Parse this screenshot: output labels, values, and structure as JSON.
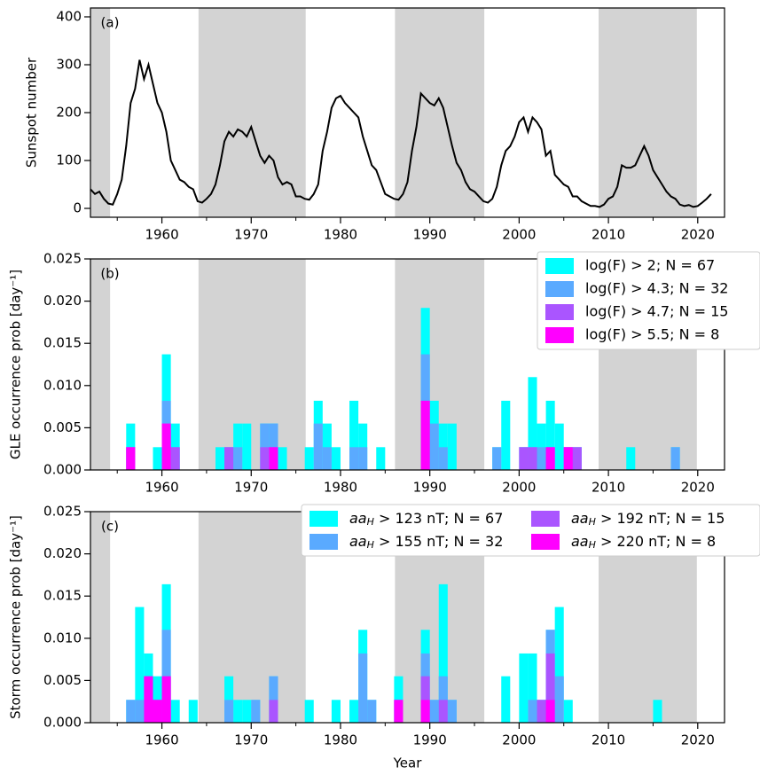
{
  "chart_data": [
    {
      "type": "line",
      "panel_label": "(a)",
      "ylabel": "Sunspot number",
      "color": "#000000",
      "xlim": [
        1952,
        2023
      ],
      "xticks": [
        1960,
        1970,
        1980,
        1990,
        2000,
        2010,
        2020
      ],
      "xminorticks": [
        1955,
        1965,
        1975,
        1985,
        1995,
        2005,
        2015
      ],
      "ylim": [
        -18.5,
        418.5
      ],
      "yticks": [
        0,
        100,
        200,
        300,
        400
      ],
      "shaded_spans": [
        [
          1952,
          1954.2
        ],
        [
          1964.1,
          1976.1
        ],
        [
          1986.1,
          1996.1
        ],
        [
          2008.9,
          2019.9
        ]
      ],
      "shade_color": "#d3d3d3",
      "x": [
        1952,
        1952.5,
        1953,
        1953.5,
        1954,
        1954.5,
        1955,
        1955.5,
        1956,
        1956.5,
        1957,
        1957.5,
        1958,
        1958.5,
        1959,
        1959.5,
        1960,
        1960.5,
        1961,
        1961.5,
        1962,
        1962.5,
        1963,
        1963.5,
        1964,
        1964.5,
        1965,
        1965.5,
        1966,
        1966.5,
        1967,
        1967.5,
        1968,
        1968.5,
        1969,
        1969.5,
        1970,
        1970.5,
        1971,
        1971.5,
        1972,
        1972.5,
        1973,
        1973.5,
        1974,
        1974.5,
        1975,
        1975.5,
        1976,
        1976.5,
        1977,
        1977.5,
        1978,
        1978.5,
        1979,
        1979.5,
        1980,
        1980.5,
        1981,
        1981.5,
        1982,
        1982.5,
        1983,
        1983.5,
        1984,
        1984.5,
        1985,
        1985.5,
        1986,
        1986.5,
        1987,
        1987.5,
        1988,
        1988.5,
        1989,
        1989.5,
        1990,
        1990.5,
        1991,
        1991.5,
        1992,
        1992.5,
        1993,
        1993.5,
        1994,
        1994.5,
        1995,
        1995.5,
        1996,
        1996.5,
        1997,
        1997.5,
        1998,
        1998.5,
        1999,
        1999.5,
        2000,
        2000.5,
        2001,
        2001.5,
        2002,
        2002.5,
        2003,
        2003.5,
        2004,
        2004.5,
        2005,
        2005.5,
        2006,
        2006.5,
        2007,
        2007.5,
        2008,
        2008.5,
        2009,
        2009.5,
        2010,
        2010.5,
        2011,
        2011.5,
        2012,
        2012.5,
        2013,
        2013.5,
        2014,
        2014.5,
        2015,
        2015.5,
        2016,
        2016.5,
        2017,
        2017.5,
        2018,
        2018.5,
        2019,
        2019.5,
        2020,
        2020.5,
        2021,
        2021.5
      ],
      "values": [
        40,
        30,
        35,
        20,
        10,
        8,
        30,
        60,
        130,
        220,
        250,
        310,
        270,
        300,
        260,
        220,
        200,
        160,
        100,
        80,
        60,
        55,
        45,
        40,
        15,
        12,
        20,
        30,
        50,
        90,
        140,
        160,
        150,
        165,
        160,
        150,
        170,
        140,
        110,
        95,
        110,
        100,
        65,
        50,
        55,
        50,
        25,
        25,
        20,
        18,
        30,
        50,
        120,
        160,
        210,
        230,
        235,
        220,
        210,
        200,
        190,
        150,
        120,
        90,
        80,
        55,
        30,
        25,
        20,
        18,
        30,
        55,
        120,
        170,
        240,
        230,
        220,
        215,
        230,
        210,
        170,
        130,
        95,
        80,
        55,
        40,
        35,
        25,
        15,
        12,
        20,
        45,
        90,
        120,
        130,
        150,
        180,
        190,
        160,
        190,
        180,
        165,
        110,
        120,
        70,
        60,
        50,
        45,
        25,
        25,
        15,
        10,
        5,
        5,
        3,
        8,
        20,
        25,
        45,
        90,
        85,
        85,
        90,
        110,
        130,
        110,
        80,
        65,
        50,
        35,
        25,
        20,
        8,
        5,
        7,
        3,
        5,
        12,
        20,
        30
      ]
    },
    {
      "type": "bar",
      "panel_label": "(b)",
      "ylabel": "GLE occurrence prob [day⁻¹]",
      "bar_width": 1,
      "xlim": [
        1952,
        2023
      ],
      "xticks": [
        1960,
        1970,
        1980,
        1990,
        2000,
        2010,
        2020
      ],
      "xminorticks": [
        1955,
        1965,
        1975,
        1985,
        1995,
        2005,
        2015
      ],
      "ylim": [
        0,
        0.025
      ],
      "yticks": [
        {
          "value": 0,
          "label": "0.000"
        },
        {
          "value": 0.005,
          "label": "0.005"
        },
        {
          "value": 0.01,
          "label": "0.010"
        },
        {
          "value": 0.015,
          "label": "0.015"
        },
        {
          "value": 0.02,
          "label": "0.020"
        },
        {
          "value": 0.025,
          "label": "0.025"
        }
      ],
      "shaded_spans": [
        [
          1952,
          1954.2
        ],
        [
          1964.1,
          1976.1
        ],
        [
          1986.1,
          1996.1
        ],
        [
          2008.9,
          2019.9
        ]
      ],
      "shade_color": "#d3d3d3",
      "legend": "upper right",
      "legend_columns": 1,
      "legend_math": false,
      "series": [
        {
          "name": "log(F) > 2; N = 67",
          "color": "#00ffff",
          "x": [
            1956,
            1959,
            1960,
            1961,
            1966,
            1967,
            1968,
            1969,
            1971,
            1972,
            1973,
            1976,
            1977,
            1978,
            1979,
            1981,
            1982,
            1984,
            1989,
            1990,
            1991,
            1992,
            1997,
            1998,
            2000,
            2001,
            2002,
            2003,
            2004,
            2005,
            2006,
            2012,
            2017
          ],
          "values": [
            0.0055,
            0.0027,
            0.0137,
            0.0055,
            0.0027,
            0.0027,
            0.0055,
            0.0055,
            0.0055,
            0.0055,
            0.0027,
            0.0027,
            0.0082,
            0.0055,
            0.0027,
            0.0082,
            0.0055,
            0.0027,
            0.0192,
            0.0082,
            0.0055,
            0.0055,
            0.0027,
            0.0082,
            0.0027,
            0.011,
            0.0055,
            0.0082,
            0.0055,
            0.0027,
            0.0027,
            0.0027,
            0.0027
          ]
        },
        {
          "name": "log(F) > 4.3; N = 32",
          "color": "#5aaaff",
          "x": [
            1956,
            1960,
            1961,
            1967,
            1968,
            1971,
            1972,
            1977,
            1978,
            1981,
            1982,
            1989,
            1990,
            1991,
            1997,
            2000,
            2001,
            2002,
            2003,
            2005,
            2006,
            2017
          ],
          "values": [
            0.0027,
            0.0082,
            0.0027,
            0.0027,
            0.0027,
            0.0055,
            0.0055,
            0.0055,
            0.0027,
            0.0027,
            0.0027,
            0.0137,
            0.0055,
            0.0027,
            0.0027,
            0.0027,
            0.0027,
            0.0027,
            0.0027,
            0.0027,
            0.0027,
            0.0027
          ]
        },
        {
          "name": "log(F) > 4.7; N = 15",
          "color": "#aa55ff",
          "x": [
            1956,
            1960,
            1961,
            1967,
            1971,
            1972,
            1989,
            2000,
            2001,
            2003,
            2005,
            2006
          ],
          "values": [
            0.0027,
            0.0055,
            0.0027,
            0.0027,
            0.0027,
            0.0027,
            0.0082,
            0.0027,
            0.0027,
            0.0027,
            0.0027,
            0.0027
          ]
        },
        {
          "name": "log(F) > 5.5; N = 8",
          "color": "#ff00ff",
          "x": [
            1956,
            1960,
            1972,
            1989,
            2003,
            2005
          ],
          "values": [
            0.0027,
            0.0055,
            0.0027,
            0.0082,
            0.0027,
            0.0027
          ]
        }
      ]
    },
    {
      "type": "bar",
      "panel_label": "(c)",
      "ylabel": "Storm occurrence prob [day⁻¹]",
      "xlabel": "Year",
      "bar_width": 1,
      "xlim": [
        1952,
        2023
      ],
      "xticks": [
        1960,
        1970,
        1980,
        1990,
        2000,
        2010,
        2020
      ],
      "xminorticks": [
        1955,
        1965,
        1975,
        1985,
        1995,
        2005,
        2015
      ],
      "ylim": [
        0,
        0.025
      ],
      "yticks": [
        {
          "value": 0,
          "label": "0.000"
        },
        {
          "value": 0.005,
          "label": "0.005"
        },
        {
          "value": 0.01,
          "label": "0.010"
        },
        {
          "value": 0.015,
          "label": "0.015"
        },
        {
          "value": 0.02,
          "label": "0.020"
        },
        {
          "value": 0.025,
          "label": "0.025"
        }
      ],
      "shaded_spans": [
        [
          1952,
          1954.2
        ],
        [
          1964.1,
          1976.1
        ],
        [
          1986.1,
          1996.1
        ],
        [
          2008.9,
          2019.9
        ]
      ],
      "shade_color": "#d3d3d3",
      "legend": "upper right",
      "legend_columns": 2,
      "legend_math": true,
      "series": [
        {
          "name": "aaH > 123 nT; N = 67",
          "color": "#00ffff",
          "x": [
            1956,
            1957,
            1958,
            1959,
            1960,
            1961,
            1963,
            1967,
            1968,
            1969,
            1970,
            1972,
            1976,
            1979,
            1981,
            1982,
            1983,
            1986,
            1989,
            1990,
            1991,
            1992,
            1998,
            2000,
            2001,
            2002,
            2003,
            2004,
            2005,
            2015
          ],
          "values": [
            0.0027,
            0.0137,
            0.0082,
            0.0055,
            0.0164,
            0.0027,
            0.0027,
            0.0055,
            0.0027,
            0.0027,
            0.0027,
            0.0055,
            0.0027,
            0.0027,
            0.0027,
            0.011,
            0.0027,
            0.0055,
            0.011,
            0.0027,
            0.0164,
            0.0027,
            0.0055,
            0.0082,
            0.0082,
            0.0027,
            0.011,
            0.0137,
            0.0027,
            0.0027
          ]
        },
        {
          "name": "aaH > 155 nT; N = 32",
          "color": "#5aaaff",
          "x": [
            1956,
            1957,
            1958,
            1959,
            1960,
            1967,
            1970,
            1972,
            1982,
            1983,
            1986,
            1989,
            1990,
            1991,
            1992,
            2001,
            2002,
            2003,
            2004
          ],
          "values": [
            0.0027,
            0.0027,
            0.0055,
            0.0027,
            0.011,
            0.0027,
            0.0027,
            0.0055,
            0.0082,
            0.0027,
            0.0027,
            0.0082,
            0.0027,
            0.0055,
            0.0027,
            0.0027,
            0.0027,
            0.011,
            0.0055
          ]
        },
        {
          "name": "aaH > 192 nT; N = 15",
          "color": "#aa55ff",
          "x": [
            1958,
            1959,
            1960,
            1972,
            1986,
            1989,
            1991,
            2002,
            2003
          ],
          "values": [
            0.0055,
            0.0027,
            0.0055,
            0.0027,
            0.0027,
            0.0055,
            0.0027,
            0.0027,
            0.0082
          ]
        },
        {
          "name": "aaH > 220 nT; N = 8",
          "color": "#ff00ff",
          "x": [
            1958,
            1959,
            1960,
            1986,
            1989,
            2003
          ],
          "values": [
            0.0055,
            0.0027,
            0.0055,
            0.0027,
            0.0027,
            0.0027
          ]
        }
      ]
    }
  ]
}
